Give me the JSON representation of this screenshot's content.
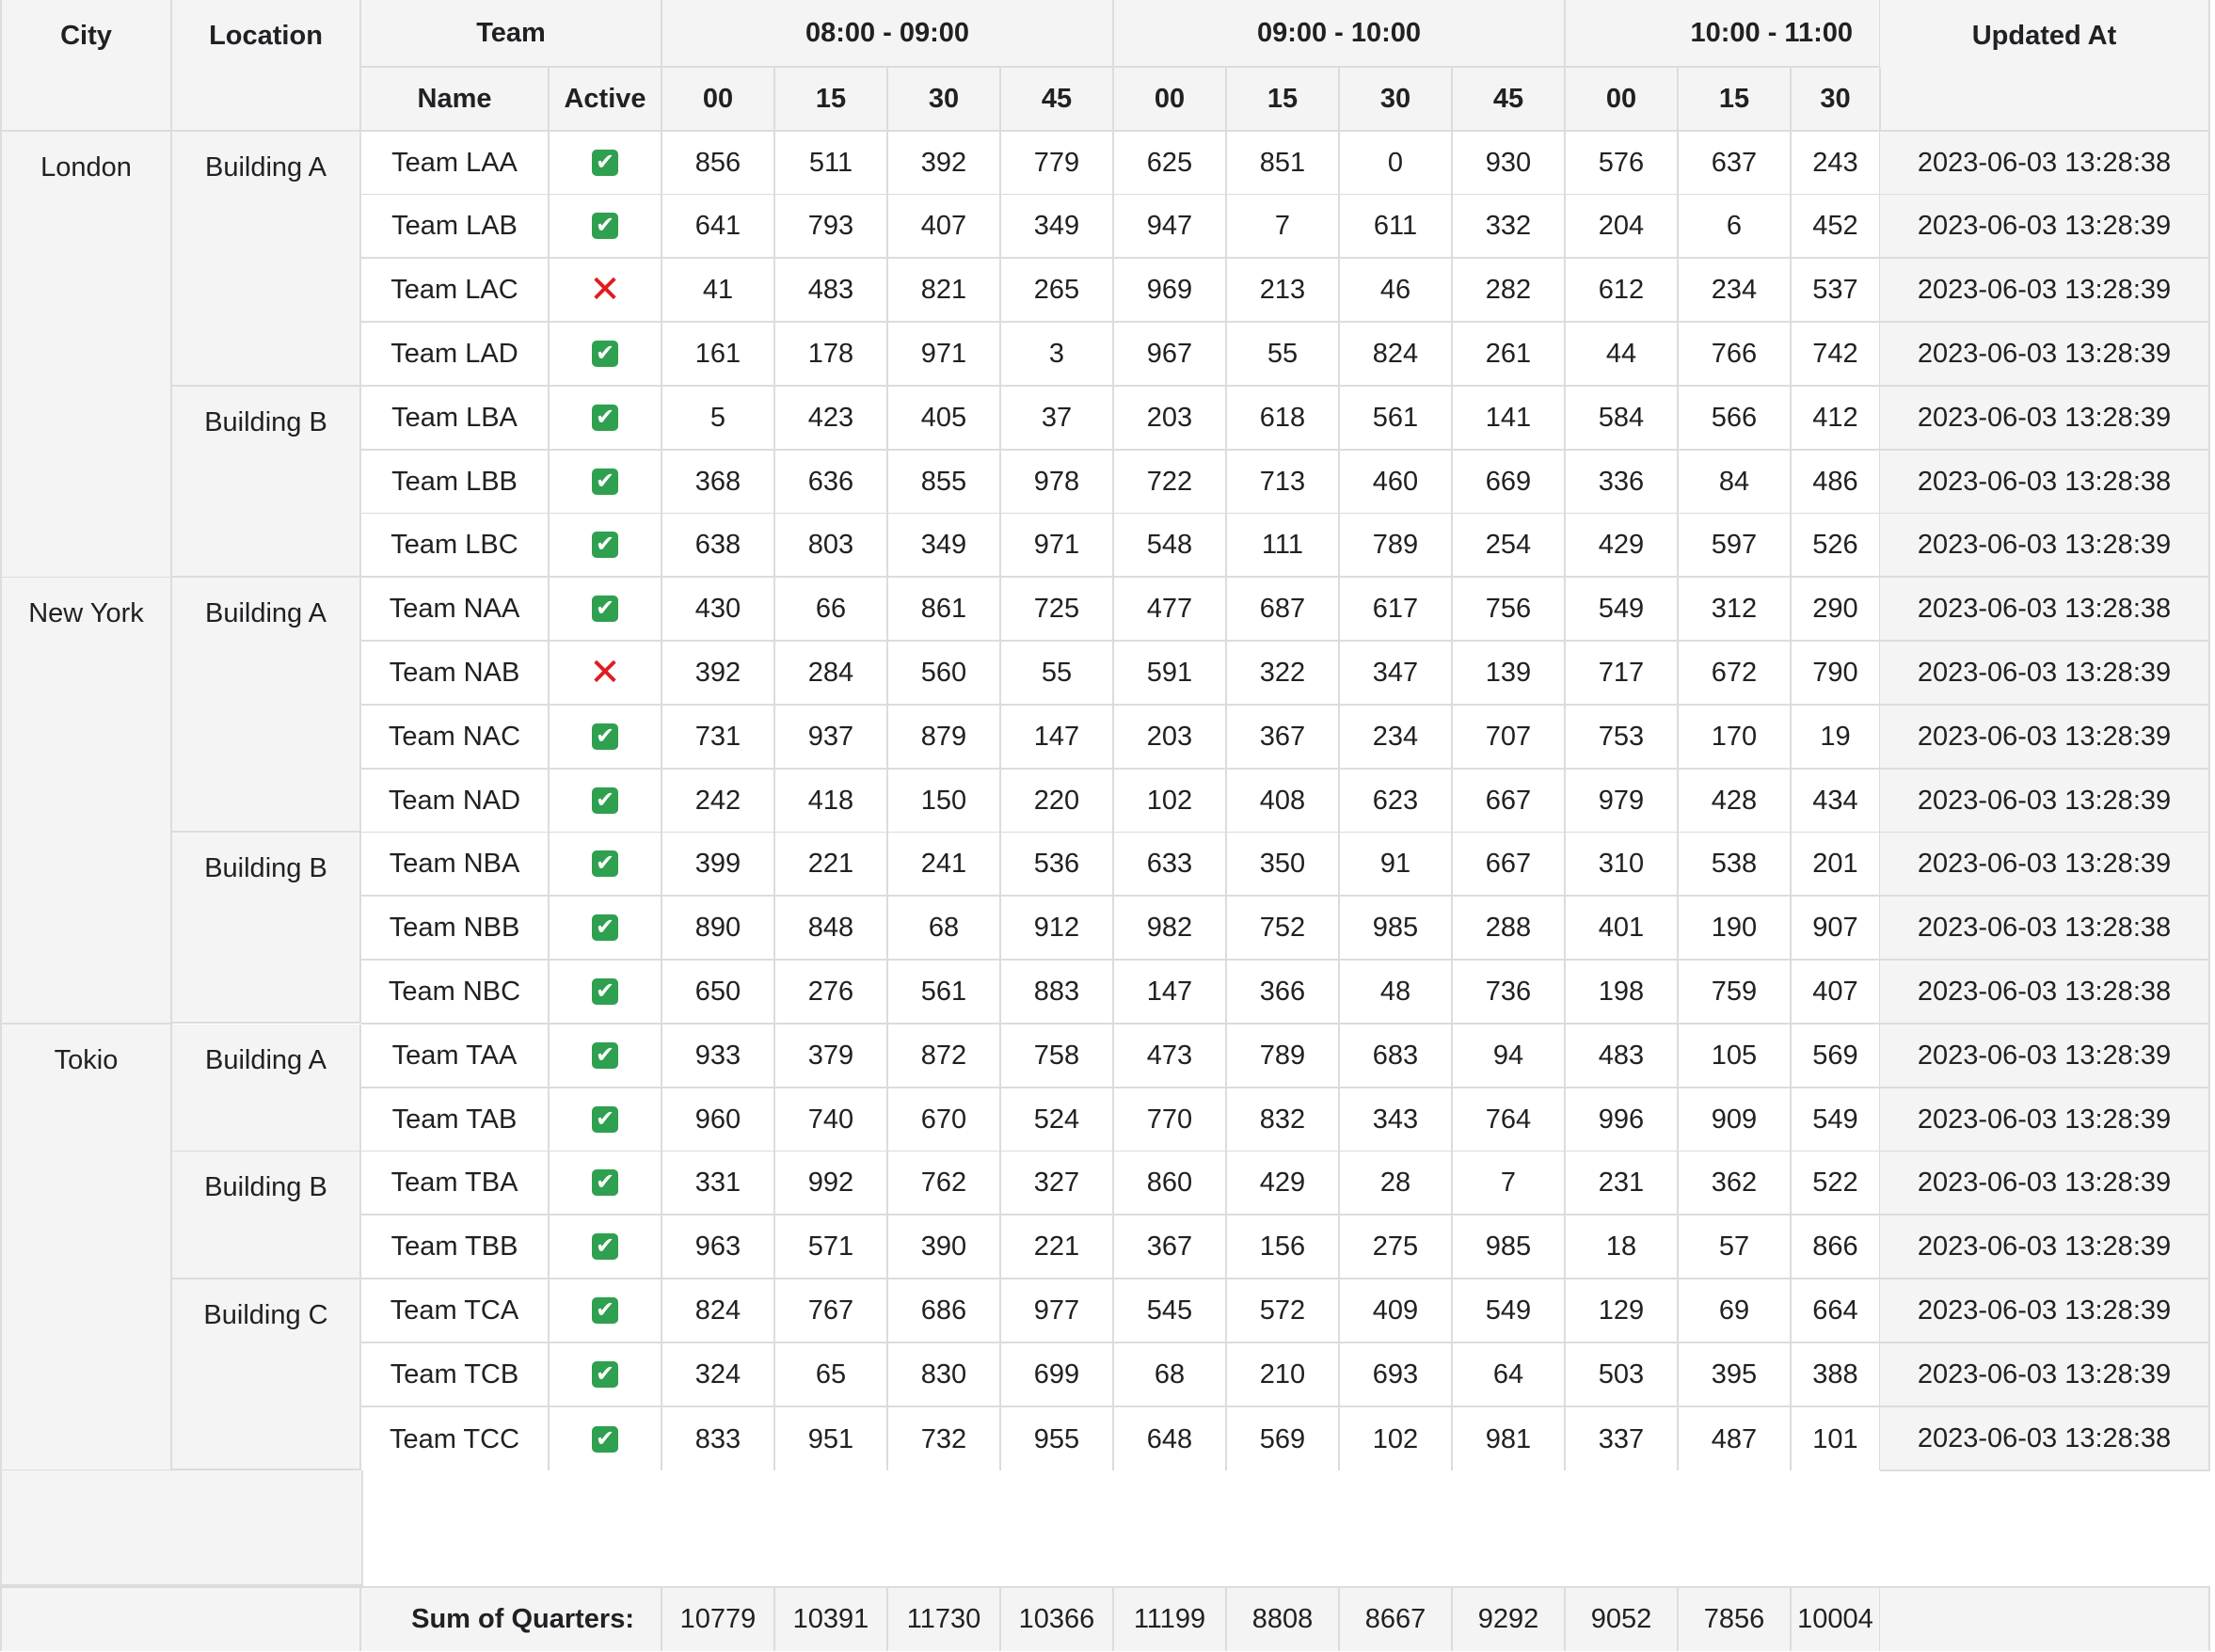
{
  "headers": {
    "city": "City",
    "location": "Location",
    "team": "Team",
    "name": "Name",
    "active": "Active",
    "updated_at": "Updated At",
    "hour_groups": [
      "08:00 - 09:00",
      "09:00 - 10:00",
      "10:00 - 11:00"
    ],
    "quarters": [
      "00",
      "15",
      "30",
      "45",
      "00",
      "15",
      "30",
      "45",
      "00",
      "15",
      "30"
    ]
  },
  "rows": [
    {
      "city": "London",
      "location": "Building A",
      "team": "Team LAA",
      "active": true,
      "values": [
        856,
        511,
        392,
        779,
        625,
        851,
        0,
        930,
        576,
        637,
        243
      ],
      "updated": "2023-06-03 13:28:38"
    },
    {
      "city": "",
      "location": "",
      "team": "Team LAB",
      "active": true,
      "values": [
        641,
        793,
        407,
        349,
        947,
        7,
        611,
        332,
        204,
        6,
        452
      ],
      "updated": "2023-06-03 13:28:39"
    },
    {
      "city": "",
      "location": "",
      "team": "Team LAC",
      "active": false,
      "values": [
        41,
        483,
        821,
        265,
        969,
        213,
        46,
        282,
        612,
        234,
        537
      ],
      "updated": "2023-06-03 13:28:39"
    },
    {
      "city": "",
      "location": "",
      "team": "Team LAD",
      "active": true,
      "values": [
        161,
        178,
        971,
        3,
        967,
        55,
        824,
        261,
        44,
        766,
        742
      ],
      "updated": "2023-06-03 13:28:39"
    },
    {
      "city": "",
      "location": "Building B",
      "team": "Team LBA",
      "active": true,
      "values": [
        5,
        423,
        405,
        37,
        203,
        618,
        561,
        141,
        584,
        566,
        412
      ],
      "updated": "2023-06-03 13:28:39"
    },
    {
      "city": "",
      "location": "",
      "team": "Team LBB",
      "active": true,
      "values": [
        368,
        636,
        855,
        978,
        722,
        713,
        460,
        669,
        336,
        84,
        486
      ],
      "updated": "2023-06-03 13:28:38"
    },
    {
      "city": "",
      "location": "",
      "team": "Team LBC",
      "active": true,
      "values": [
        638,
        803,
        349,
        971,
        548,
        111,
        789,
        254,
        429,
        597,
        526
      ],
      "updated": "2023-06-03 13:28:39"
    },
    {
      "city": "New York",
      "location": "Building A",
      "team": "Team NAA",
      "active": true,
      "values": [
        430,
        66,
        861,
        725,
        477,
        687,
        617,
        756,
        549,
        312,
        290
      ],
      "updated": "2023-06-03 13:28:38"
    },
    {
      "city": "",
      "location": "",
      "team": "Team NAB",
      "active": false,
      "values": [
        392,
        284,
        560,
        55,
        591,
        322,
        347,
        139,
        717,
        672,
        790
      ],
      "updated": "2023-06-03 13:28:39"
    },
    {
      "city": "",
      "location": "",
      "team": "Team NAC",
      "active": true,
      "values": [
        731,
        937,
        879,
        147,
        203,
        367,
        234,
        707,
        753,
        170,
        19
      ],
      "updated": "2023-06-03 13:28:39"
    },
    {
      "city": "",
      "location": "",
      "team": "Team NAD",
      "active": true,
      "values": [
        242,
        418,
        150,
        220,
        102,
        408,
        623,
        667,
        979,
        428,
        434
      ],
      "updated": "2023-06-03 13:28:39"
    },
    {
      "city": "",
      "location": "Building B",
      "team": "Team NBA",
      "active": true,
      "values": [
        399,
        221,
        241,
        536,
        633,
        350,
        91,
        667,
        310,
        538,
        201
      ],
      "updated": "2023-06-03 13:28:39"
    },
    {
      "city": "",
      "location": "",
      "team": "Team NBB",
      "active": true,
      "values": [
        890,
        848,
        68,
        912,
        982,
        752,
        985,
        288,
        401,
        190,
        907
      ],
      "updated": "2023-06-03 13:28:38"
    },
    {
      "city": "",
      "location": "",
      "team": "Team NBC",
      "active": true,
      "values": [
        650,
        276,
        561,
        883,
        147,
        366,
        48,
        736,
        198,
        759,
        407
      ],
      "updated": "2023-06-03 13:28:38"
    },
    {
      "city": "Tokio",
      "location": "Building A",
      "team": "Team TAA",
      "active": true,
      "values": [
        933,
        379,
        872,
        758,
        473,
        789,
        683,
        94,
        483,
        105,
        569
      ],
      "updated": "2023-06-03 13:28:39"
    },
    {
      "city": "",
      "location": "",
      "team": "Team TAB",
      "active": true,
      "values": [
        960,
        740,
        670,
        524,
        770,
        832,
        343,
        764,
        996,
        909,
        549
      ],
      "updated": "2023-06-03 13:28:39"
    },
    {
      "city": "",
      "location": "Building B",
      "team": "Team TBA",
      "active": true,
      "values": [
        331,
        992,
        762,
        327,
        860,
        429,
        28,
        7,
        231,
        362,
        522
      ],
      "updated": "2023-06-03 13:28:39"
    },
    {
      "city": "",
      "location": "",
      "team": "Team TBB",
      "active": true,
      "values": [
        963,
        571,
        390,
        221,
        367,
        156,
        275,
        985,
        18,
        57,
        866
      ],
      "updated": "2023-06-03 13:28:39"
    },
    {
      "city": "",
      "location": "Building C",
      "team": "Team TCA",
      "active": true,
      "values": [
        824,
        767,
        686,
        977,
        545,
        572,
        409,
        549,
        129,
        69,
        664
      ],
      "updated": "2023-06-03 13:28:39"
    },
    {
      "city": "",
      "location": "",
      "team": "Team TCB",
      "active": true,
      "values": [
        324,
        65,
        830,
        699,
        68,
        210,
        693,
        64,
        503,
        395,
        388
      ],
      "updated": "2023-06-03 13:28:39"
    },
    {
      "city": "",
      "location": "",
      "team": "Team TCC",
      "active": true,
      "values": [
        833,
        951,
        732,
        955,
        648,
        569,
        102,
        981,
        337,
        487,
        101
      ],
      "updated": "2023-06-03 13:28:38"
    }
  ],
  "footer": {
    "label": "Sum of Quarters:",
    "sums": [
      10779,
      10391,
      11730,
      10366,
      11199,
      8808,
      8667,
      9292,
      9052,
      7856,
      10004
    ]
  },
  "icons": {
    "active": "check-icon",
    "inactive": "cross-icon"
  },
  "colors": {
    "header_bg": "#f4f4f4",
    "grid_line": "#dcdcdc",
    "active_green": "#2ea04f",
    "inactive_red": "#e21b1b"
  }
}
